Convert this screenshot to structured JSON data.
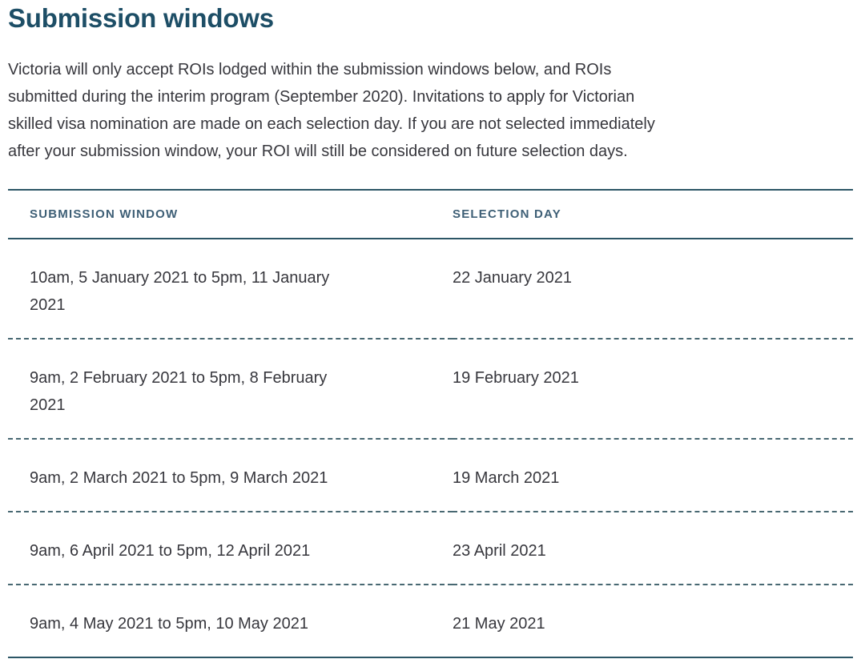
{
  "page": {
    "title": "Submission windows",
    "intro": "Victoria will only accept ROIs lodged within the submission windows below, and ROIs submitted during the interim program (September 2020). Invitations to apply for Victorian skilled visa nomination are made on each selection day. If you are not selected immediately after your submission window, your ROI will still be considered on future selection days."
  },
  "colors": {
    "heading": "#1d4e66",
    "body_text": "#37373d",
    "table_header_text": "#3e5f76",
    "solid_rule": "#2c5666",
    "dashed_rule": "#486872"
  },
  "table": {
    "columns": [
      "SUBMISSION WINDOW",
      "SELECTION DAY"
    ],
    "rows": [
      {
        "submission_window": "10am, 5 January 2021 to 5pm, 11 January 2021",
        "selection_day": "22 January 2021"
      },
      {
        "submission_window": "9am, 2 February 2021 to 5pm, 8 February 2021",
        "selection_day": "19 February 2021"
      },
      {
        "submission_window": "9am, 2 March 2021 to 5pm, 9 March 2021",
        "selection_day": "19 March 2021"
      },
      {
        "submission_window": "9am, 6 April 2021 to 5pm, 12 April 2021",
        "selection_day": "23 April 2021"
      },
      {
        "submission_window": "9am, 4 May 2021 to 5pm, 10 May 2021",
        "selection_day": "21 May 2021"
      }
    ]
  }
}
